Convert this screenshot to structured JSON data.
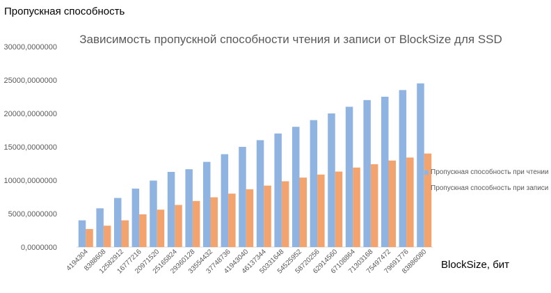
{
  "chart_data": {
    "type": "bar",
    "title": "Зависимость пропускной способности чтения и записи от BlockSize для SSD",
    "ylabel": "Пропускная способность",
    "xlabel": "BlockSize, бит",
    "ylim": [
      0,
      30000
    ],
    "yticks": [
      0,
      5000,
      10000,
      15000,
      20000,
      25000,
      30000
    ],
    "ytick_labels": [
      "0,0000000",
      "5000,0000000",
      "10000,0000000",
      "15000,0000000",
      "20000,0000000",
      "25000,0000000",
      "30000,0000000"
    ],
    "grid": false,
    "legend_position": "right",
    "categories": [
      "4194304",
      "8388608",
      "12582912",
      "16777216",
      "20971520",
      "25165824",
      "29360128",
      "33554432",
      "37748736",
      "41943040",
      "46137344",
      "50331648",
      "54525952",
      "58720256",
      "62914560",
      "67108864",
      "71303168",
      "75497472",
      "79691776",
      "83886080"
    ],
    "series": [
      {
        "name": "Пропускная способность при чтении",
        "color": "#8fb4e1",
        "values": [
          4000,
          5800,
          7350,
          8750,
          9950,
          11250,
          11650,
          12750,
          13900,
          15000,
          16000,
          17000,
          18000,
          19000,
          20000,
          21000,
          22000,
          22500,
          23500,
          24500
        ]
      },
      {
        "name": "Пропускная способность при записи",
        "color": "#f3a36d",
        "values": [
          2700,
          3200,
          4000,
          4900,
          5600,
          6300,
          6900,
          7450,
          8000,
          8650,
          9200,
          9850,
          10400,
          10850,
          11300,
          11900,
          12400,
          12950,
          13400,
          14000
        ]
      }
    ]
  }
}
